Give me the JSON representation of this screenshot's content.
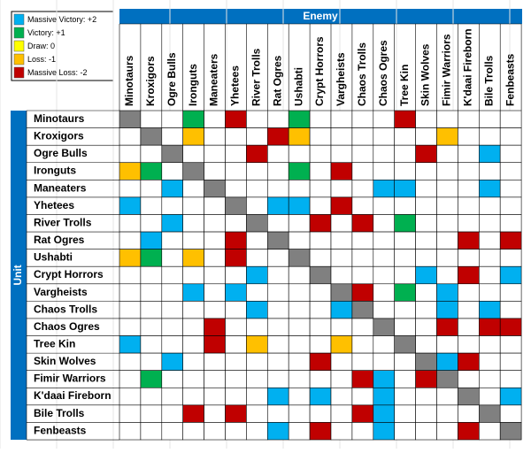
{
  "chart_data": {
    "type": "matrix",
    "x_label": "Enemy",
    "y_label": "Unit",
    "categories": [
      "Minotaurs",
      "Kroxigors",
      "Ogre Bulls",
      "Ironguts",
      "Maneaters",
      "Yhetees",
      "River Trolls",
      "Rat Ogres",
      "Ushabti",
      "Crypt Horrors",
      "Vargheists",
      "Chaos Trolls",
      "Chaos Ogres",
      "Tree Kin",
      "Skin Wolves",
      "Fimir Warriors",
      "K'daai Fireborn",
      "Bile Trolls",
      "Fenbeasts"
    ],
    "legend": [
      {
        "label": "Massive Victory: +2",
        "value": 2,
        "color": "#00b0f0"
      },
      {
        "label": "Victory: +1",
        "value": 1,
        "color": "#00b050"
      },
      {
        "label": "Draw: 0",
        "value": 0,
        "color": "#ffff00"
      },
      {
        "label": "Loss: -1",
        "value": -1,
        "color": "#ffc000"
      },
      {
        "label": "Massive Loss: -2",
        "value": -2,
        "color": "#c00000"
      }
    ],
    "values": [
      [
        null,
        null,
        null,
        1,
        null,
        -2,
        null,
        null,
        1,
        null,
        null,
        null,
        null,
        -2,
        null,
        null,
        null,
        null,
        null
      ],
      [
        null,
        null,
        null,
        -1,
        null,
        null,
        null,
        -2,
        -1,
        null,
        null,
        null,
        null,
        null,
        null,
        -1,
        null,
        null,
        null
      ],
      [
        null,
        null,
        null,
        null,
        null,
        null,
        -2,
        null,
        null,
        null,
        null,
        null,
        null,
        null,
        -2,
        null,
        null,
        2,
        null
      ],
      [
        -1,
        1,
        null,
        null,
        null,
        null,
        null,
        null,
        1,
        null,
        -2,
        null,
        null,
        null,
        null,
        null,
        null,
        null,
        null
      ],
      [
        null,
        null,
        2,
        null,
        null,
        null,
        null,
        null,
        null,
        null,
        null,
        null,
        2,
        2,
        null,
        null,
        null,
        2,
        null
      ],
      [
        2,
        null,
        null,
        null,
        null,
        null,
        null,
        2,
        2,
        null,
        -2,
        null,
        null,
        null,
        null,
        null,
        null,
        null,
        null
      ],
      [
        null,
        null,
        2,
        null,
        null,
        null,
        null,
        null,
        null,
        -2,
        null,
        -2,
        null,
        1,
        null,
        null,
        null,
        null,
        null
      ],
      [
        null,
        2,
        null,
        null,
        null,
        -2,
        null,
        null,
        null,
        null,
        null,
        null,
        null,
        null,
        null,
        null,
        -2,
        null,
        -2
      ],
      [
        -1,
        1,
        null,
        -1,
        null,
        -2,
        null,
        null,
        null,
        null,
        null,
        null,
        null,
        null,
        null,
        null,
        null,
        null,
        null
      ],
      [
        null,
        null,
        null,
        null,
        null,
        null,
        2,
        null,
        null,
        null,
        null,
        null,
        null,
        null,
        2,
        null,
        -2,
        null,
        2
      ],
      [
        null,
        null,
        null,
        2,
        null,
        2,
        null,
        null,
        null,
        null,
        null,
        -2,
        null,
        1,
        null,
        2,
        null,
        null,
        null
      ],
      [
        null,
        null,
        null,
        null,
        null,
        null,
        2,
        null,
        null,
        null,
        2,
        null,
        null,
        null,
        null,
        2,
        null,
        2,
        null
      ],
      [
        null,
        null,
        null,
        null,
        -2,
        null,
        null,
        null,
        null,
        null,
        null,
        null,
        null,
        null,
        null,
        -2,
        null,
        -2,
        -2
      ],
      [
        2,
        null,
        null,
        null,
        -2,
        null,
        -1,
        null,
        null,
        null,
        -1,
        null,
        null,
        null,
        null,
        null,
        null,
        null,
        null
      ],
      [
        null,
        null,
        2,
        null,
        null,
        null,
        null,
        null,
        null,
        -2,
        null,
        null,
        null,
        null,
        null,
        2,
        -2,
        null,
        null
      ],
      [
        null,
        1,
        null,
        null,
        null,
        null,
        null,
        null,
        null,
        null,
        null,
        -2,
        2,
        null,
        -2,
        null,
        null,
        null,
        null
      ],
      [
        null,
        null,
        null,
        null,
        null,
        null,
        null,
        2,
        null,
        2,
        null,
        null,
        2,
        null,
        null,
        null,
        null,
        null,
        2
      ],
      [
        null,
        null,
        null,
        -2,
        null,
        -2,
        null,
        null,
        null,
        null,
        null,
        -2,
        2,
        null,
        null,
        null,
        null,
        null,
        null
      ],
      [
        null,
        null,
        null,
        null,
        null,
        null,
        null,
        2,
        null,
        -2,
        null,
        null,
        2,
        null,
        null,
        null,
        -2,
        null,
        null
      ]
    ]
  }
}
